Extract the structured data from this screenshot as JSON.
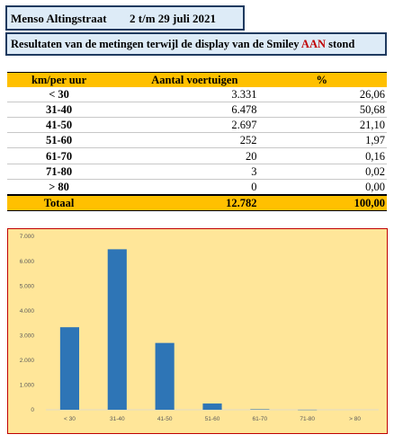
{
  "header": {
    "location": "Menso Altingstraat",
    "period": "2 t/m 29 juli 2021"
  },
  "subtitle": {
    "before": "Resultaten van de metingen terwijl de display van de Smiley ",
    "highlight": "AAN",
    "after": " stond",
    "highlight_color": "#c00000"
  },
  "table": {
    "headers": [
      "km/per uur",
      "Aantal voertuigen",
      "%"
    ],
    "rows": [
      {
        "range": "< 30",
        "count": "3.331",
        "pct": "26,06"
      },
      {
        "range": "31-40",
        "count": "6.478",
        "pct": "50,68"
      },
      {
        "range": "41-50",
        "count": "2.697",
        "pct": "21,10"
      },
      {
        "range": "51-60",
        "count": "252",
        "pct": "1,97"
      },
      {
        "range": "61-70",
        "count": "20",
        "pct": "0,16"
      },
      {
        "range": "71-80",
        "count": "3",
        "pct": "0,02"
      },
      {
        "range": "> 80",
        "count": "0",
        "pct": "0,00"
      }
    ],
    "total": {
      "label": "Totaal",
      "count": "12.782",
      "pct": "100,00"
    },
    "accent_color": "#ffc000"
  },
  "chart_data": {
    "type": "bar",
    "categories": [
      "< 30",
      "31-40",
      "41-50",
      "51-60",
      "61-70",
      "71-80",
      "> 80"
    ],
    "values": [
      3331,
      6478,
      2697,
      252,
      20,
      3,
      0
    ],
    "ylim": [
      0,
      7000
    ],
    "yticks": [
      0,
      1000,
      2000,
      3000,
      4000,
      5000,
      6000,
      7000
    ],
    "ytick_labels": [
      "0",
      "1.000",
      "2.000",
      "3.000",
      "4.000",
      "5.000",
      "6.000",
      "7.000"
    ],
    "bar_color": "#2e75b6",
    "background": "#ffe699",
    "grid": false,
    "legend": "none"
  }
}
